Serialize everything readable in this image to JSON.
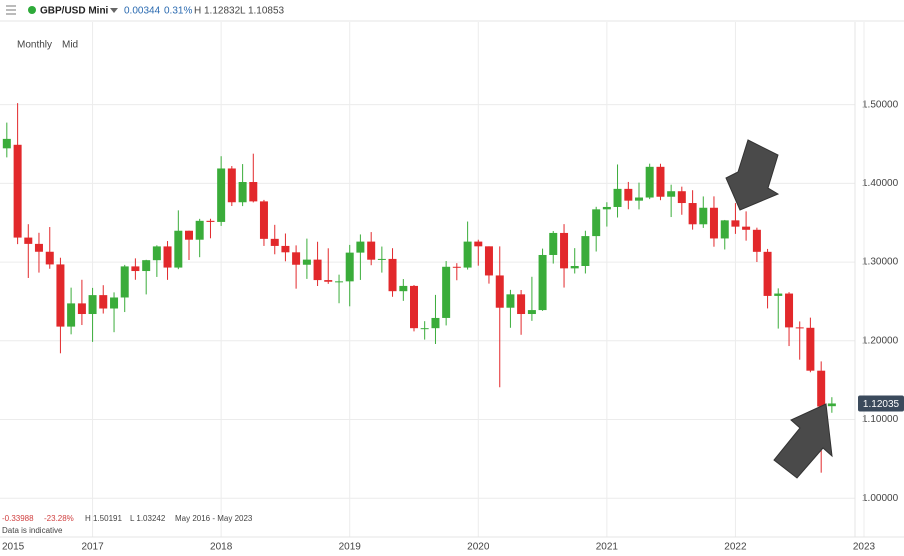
{
  "chart_data": {
    "type": "candlestick",
    "header": {
      "symbol": "GBP/USD Mini",
      "change": "0.00344",
      "change_pct": "0.31%",
      "high": "H 1.12832",
      "low": "L 1.10853"
    },
    "period": "Monthly",
    "price_type": "Mid",
    "footer": {
      "change": "-0.33988",
      "change_pct": "-23.28%",
      "high": "H 1.50191",
      "low": "L 1.03242",
      "range": "May 2016 - May 2023",
      "note": "Data is indicative"
    },
    "x_start_label": "2015",
    "x": [
      2016.333,
      2016.417,
      2016.5,
      2016.583,
      2016.667,
      2016.75,
      2016.833,
      2016.917,
      2017,
      2017.083,
      2017.167,
      2017.25,
      2017.333,
      2017.417,
      2017.5,
      2017.583,
      2017.667,
      2017.75,
      2017.833,
      2017.917,
      2018,
      2018.083,
      2018.167,
      2018.25,
      2018.333,
      2018.417,
      2018.5,
      2018.583,
      2018.667,
      2018.75,
      2018.833,
      2018.917,
      2019,
      2019.083,
      2019.167,
      2019.25,
      2019.333,
      2019.417,
      2019.5,
      2019.583,
      2019.667,
      2019.75,
      2019.833,
      2019.917,
      2020,
      2020.083,
      2020.167,
      2020.25,
      2020.333,
      2020.417,
      2020.5,
      2020.583,
      2020.667,
      2020.75,
      2020.833,
      2020.917,
      2021,
      2021.083,
      2021.167,
      2021.25,
      2021.333,
      2021.417,
      2021.5,
      2021.583,
      2021.667,
      2021.75,
      2021.833,
      2021.917,
      2022,
      2022.083,
      2022.167,
      2022.25,
      2022.333,
      2022.417,
      2022.5,
      2022.583,
      2022.667,
      2022.75
    ],
    "open": [
      1.4445,
      1.449,
      1.3311,
      1.3231,
      1.3131,
      1.297,
      1.218,
      1.2475,
      1.234,
      1.258,
      1.241,
      1.255,
      1.2945,
      1.2886,
      1.3024,
      1.3199,
      1.293,
      1.3398,
      1.3284,
      1.3524,
      1.351,
      1.4189,
      1.376,
      1.4017,
      1.3771,
      1.3295,
      1.3205,
      1.3124,
      1.2966,
      1.3031,
      1.2771,
      1.275,
      1.2755,
      1.312,
      1.326,
      1.303,
      1.304,
      1.263,
      1.2697,
      1.216,
      1.216,
      1.229,
      1.294,
      1.293,
      1.326,
      1.32,
      1.283,
      1.242,
      1.259,
      1.234,
      1.239,
      1.309,
      1.337,
      1.292,
      1.295,
      1.333,
      1.367,
      1.37,
      1.393,
      1.378,
      1.382,
      1.421,
      1.383,
      1.39,
      1.375,
      1.348,
      1.369,
      1.33,
      1.353,
      1.345,
      1.341,
      1.313,
      1.257,
      1.26,
      1.217,
      1.2165,
      1.162,
      1.1169
    ],
    "high": [
      1.4772,
      1.50191,
      1.3481,
      1.3372,
      1.3445,
      1.3055,
      1.2675,
      1.2775,
      1.2672,
      1.2706,
      1.2615,
      1.2964,
      1.3047,
      1.3029,
      1.3213,
      1.3267,
      1.3657,
      1.34,
      1.3549,
      1.355,
      1.4345,
      1.422,
      1.4245,
      1.4377,
      1.379,
      1.3473,
      1.3363,
      1.3212,
      1.3298,
      1.3258,
      1.3175,
      1.284,
      1.3218,
      1.3351,
      1.3381,
      1.3197,
      1.3176,
      1.2784,
      1.2708,
      1.2249,
      1.2583,
      1.3013,
      1.2986,
      1.3515,
      1.3284,
      1.32,
      1.32,
      1.2647,
      1.2645,
      1.2813,
      1.3171,
      1.3394,
      1.3482,
      1.3177,
      1.3398,
      1.3702,
      1.376,
      1.424,
      1.4018,
      1.401,
      1.425,
      1.4249,
      1.3983,
      1.3958,
      1.3913,
      1.3834,
      1.3835,
      1.3535,
      1.3749,
      1.3644,
      1.3437,
      1.3167,
      1.2666,
      1.2618,
      1.2246,
      1.2294,
      1.1738,
      1.12832
    ],
    "low": [
      1.433,
      1.3228,
      1.2798,
      1.2866,
      1.2915,
      1.1841,
      1.2082,
      1.22,
      1.1986,
      1.2346,
      1.2109,
      1.2365,
      1.2775,
      1.2589,
      1.2811,
      1.2774,
      1.291,
      1.3027,
      1.3062,
      1.3302,
      1.3459,
      1.3712,
      1.3711,
      1.3758,
      1.3205,
      1.3099,
      1.301,
      1.2662,
      1.2786,
      1.2696,
      1.2723,
      1.2477,
      1.2438,
      1.2773,
      1.296,
      1.2866,
      1.2559,
      1.2507,
      1.2119,
      1.2015,
      1.1959,
      1.2195,
      1.2769,
      1.2905,
      1.2954,
      1.2726,
      1.1409,
      1.2165,
      1.2076,
      1.2253,
      1.238,
      1.2981,
      1.2676,
      1.2855,
      1.2855,
      1.3134,
      1.3451,
      1.3566,
      1.3671,
      1.3669,
      1.38,
      1.3786,
      1.3572,
      1.3601,
      1.3412,
      1.3434,
      1.3195,
      1.316,
      1.3358,
      1.3272,
      1.3001,
      1.2411,
      1.2155,
      1.1933,
      1.176,
      1.16,
      1.03242,
      1.10853
    ],
    "close": [
      1.4565,
      1.3311,
      1.3231,
      1.3131,
      1.297,
      1.218,
      1.2475,
      1.234,
      1.258,
      1.241,
      1.255,
      1.2945,
      1.2886,
      1.3024,
      1.3199,
      1.293,
      1.3398,
      1.3284,
      1.3524,
      1.351,
      1.4189,
      1.376,
      1.4017,
      1.3771,
      1.3295,
      1.3205,
      1.3124,
      1.2966,
      1.3031,
      1.2771,
      1.275,
      1.2755,
      1.312,
      1.326,
      1.303,
      1.304,
      1.263,
      1.2697,
      1.216,
      1.216,
      1.229,
      1.294,
      1.293,
      1.326,
      1.32,
      1.283,
      1.242,
      1.259,
      1.234,
      1.239,
      1.309,
      1.337,
      1.292,
      1.295,
      1.333,
      1.367,
      1.37,
      1.393,
      1.378,
      1.382,
      1.421,
      1.383,
      1.39,
      1.375,
      1.348,
      1.369,
      1.33,
      1.353,
      1.345,
      1.341,
      1.313,
      1.257,
      1.26,
      1.217,
      1.2165,
      1.162,
      1.1165,
      1.12035
    ],
    "up_color": "#3aac3a",
    "down_color": "#e2282b",
    "last_price": 1.12035,
    "xlim": [
      2016.28,
      2022.93
    ],
    "ylim": [
      0.985,
      1.605
    ],
    "xticks": [
      2017,
      2018,
      2019,
      2020,
      2021,
      2022,
      2023
    ],
    "yticks": [
      {
        "value": 1.0,
        "label": "1.00000"
      },
      {
        "value": 1.1,
        "label": "1.10000"
      },
      {
        "value": 1.2,
        "label": "1.20000"
      },
      {
        "value": 1.3,
        "label": "1.30000"
      },
      {
        "value": 1.4,
        "label": "1.40000"
      },
      {
        "value": 1.5,
        "label": "1.50000"
      }
    ],
    "grid": true
  }
}
